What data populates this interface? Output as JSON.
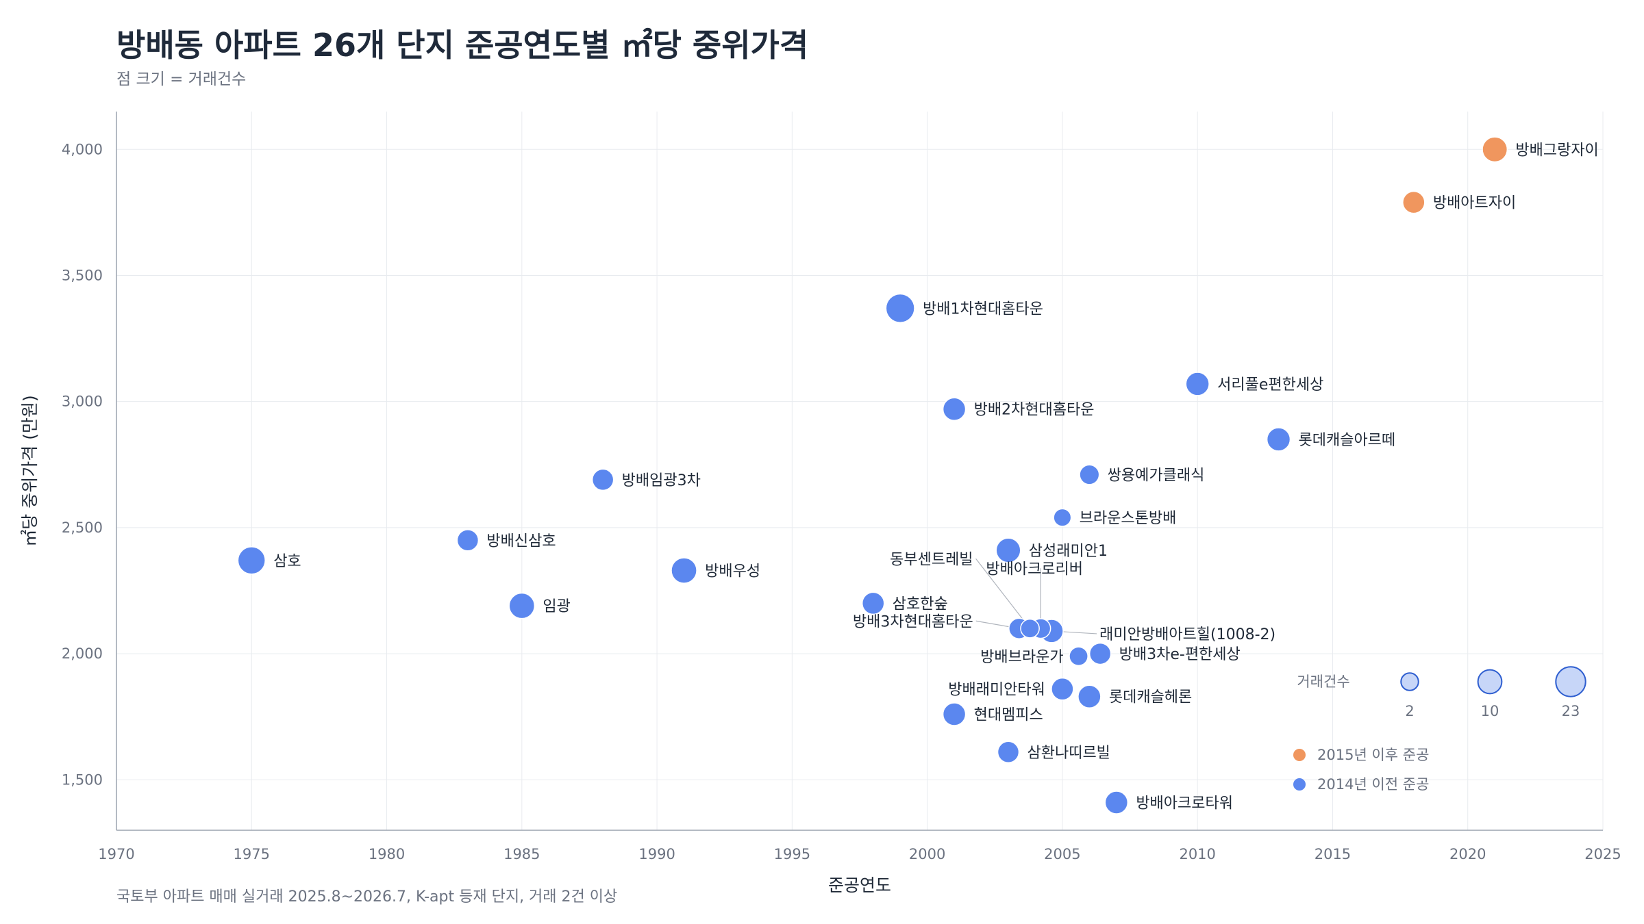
{
  "header": {
    "title": "방배동 아파트 26개 단지 준공연도별 ㎡당 중위가격",
    "subtitle": "점 크기 = 거래건수"
  },
  "footer": {
    "source": "국토부 아파트 매매 실거래 2025.8~2026.7, K-apt 등재 단지, 거래 2건 이상"
  },
  "colors": {
    "recent": "#f0965e",
    "older": "#5b87ef",
    "grid": "#e8ebef",
    "axis": "#9ca3af"
  },
  "chart_data": {
    "type": "scatter",
    "xlabel": "준공연도",
    "ylabel": "㎡당 중위가격 (만원)",
    "xlim": [
      1970,
      2025
    ],
    "ylim": [
      1300,
      4150
    ],
    "xticks": [
      1970,
      1975,
      1980,
      1985,
      1990,
      1995,
      2000,
      2005,
      2010,
      2015,
      2020,
      2025
    ],
    "xtick_labels": [
      "1970",
      "1975",
      "1980",
      "1985",
      "1990",
      "1995",
      "2000",
      "2005",
      "2010",
      "2015",
      "2020",
      "2025"
    ],
    "yticks": [
      1500,
      2000,
      2500,
      3000,
      3500,
      4000
    ],
    "ytick_labels": [
      "1,500",
      "2,000",
      "2,500",
      "3,000",
      "3,500",
      "4,000"
    ],
    "grid": true,
    "size_encoding": "거래건수",
    "points": [
      {
        "name": "방배그랑자이",
        "x": 2021,
        "y": 4000,
        "count": 12,
        "group": "recent"
      },
      {
        "name": "방배아트자이",
        "x": 2018,
        "y": 3790,
        "count": 7,
        "group": "recent"
      },
      {
        "name": "방배1차현대홈타운",
        "x": 1999,
        "y": 3370,
        "count": 20,
        "group": "older"
      },
      {
        "name": "서리풀e편한세상",
        "x": 2010,
        "y": 3070,
        "count": 9,
        "group": "older"
      },
      {
        "name": "방배2차현대홈타운",
        "x": 2001,
        "y": 2970,
        "count": 8,
        "group": "older"
      },
      {
        "name": "롯데캐슬아르떼",
        "x": 2013,
        "y": 2850,
        "count": 9,
        "group": "older"
      },
      {
        "name": "쌍용예가클래식",
        "x": 2006,
        "y": 2710,
        "count": 4,
        "group": "older"
      },
      {
        "name": "방배임광3차",
        "x": 1988,
        "y": 2690,
        "count": 6,
        "group": "older"
      },
      {
        "name": "브라운스톤방배",
        "x": 2005,
        "y": 2540,
        "count": 2,
        "group": "older"
      },
      {
        "name": "방배신삼호",
        "x": 1983,
        "y": 2450,
        "count": 6,
        "group": "older"
      },
      {
        "name": "삼성래미안1",
        "x": 2003,
        "y": 2410,
        "count": 11,
        "group": "older"
      },
      {
        "name": "삼호",
        "x": 1975,
        "y": 2370,
        "count": 17,
        "group": "older"
      },
      {
        "name": "방배우성",
        "x": 1991,
        "y": 2330,
        "count": 13,
        "group": "older"
      },
      {
        "name": "삼호한숲",
        "x": 1998,
        "y": 2200,
        "count": 7,
        "group": "older"
      },
      {
        "name": "임광",
        "x": 1985,
        "y": 2190,
        "count": 13,
        "group": "older"
      },
      {
        "name": "방배3차현대홈타운",
        "x": 2003.4,
        "y": 2100,
        "count": 5,
        "group": "older"
      },
      {
        "name": "동부센트레빌",
        "x": 2003.8,
        "y": 2100,
        "count": 3,
        "group": "older"
      },
      {
        "name": "방배아크로리버",
        "x": 2004.2,
        "y": 2100,
        "count": 4,
        "group": "older"
      },
      {
        "name": "래미안방배아트힐(1008-2)",
        "x": 2004.6,
        "y": 2090,
        "count": 9,
        "group": "older"
      },
      {
        "name": "방배3차e-편한세상",
        "x": 2006.4,
        "y": 2000,
        "count": 6,
        "group": "older"
      },
      {
        "name": "방배브라운가",
        "x": 2005.6,
        "y": 1990,
        "count": 3,
        "group": "older"
      },
      {
        "name": "방배래미안타워",
        "x": 2005,
        "y": 1860,
        "count": 7,
        "group": "older"
      },
      {
        "name": "롯데캐슬헤론",
        "x": 2006,
        "y": 1830,
        "count": 8,
        "group": "older"
      },
      {
        "name": "현대멤피스",
        "x": 2001,
        "y": 1760,
        "count": 8,
        "group": "older"
      },
      {
        "name": "삼환나띠르빌",
        "x": 2003,
        "y": 1610,
        "count": 6,
        "group": "older"
      },
      {
        "name": "방배아크로타워",
        "x": 2007,
        "y": 1410,
        "count": 8,
        "group": "older"
      }
    ],
    "annotations": [
      {
        "text": "동부센트레빌"
      },
      {
        "text": "방배아크로리버"
      },
      {
        "text": "방배3차현대홈타운"
      },
      {
        "text": "래미안방배아트힐(1008-2)"
      },
      {
        "text": "방배브라운가"
      },
      {
        "text": "방배래미안타워"
      }
    ],
    "legend": {
      "placement": "bottom-right",
      "size_title": "거래건수",
      "size_values": [
        2,
        10,
        23
      ],
      "size_labels": [
        "2",
        "10",
        "23"
      ],
      "color_entries": [
        {
          "label": "2015년 이후 준공",
          "group": "recent"
        },
        {
          "label": "2014년 이전 준공",
          "group": "older"
        }
      ]
    }
  }
}
